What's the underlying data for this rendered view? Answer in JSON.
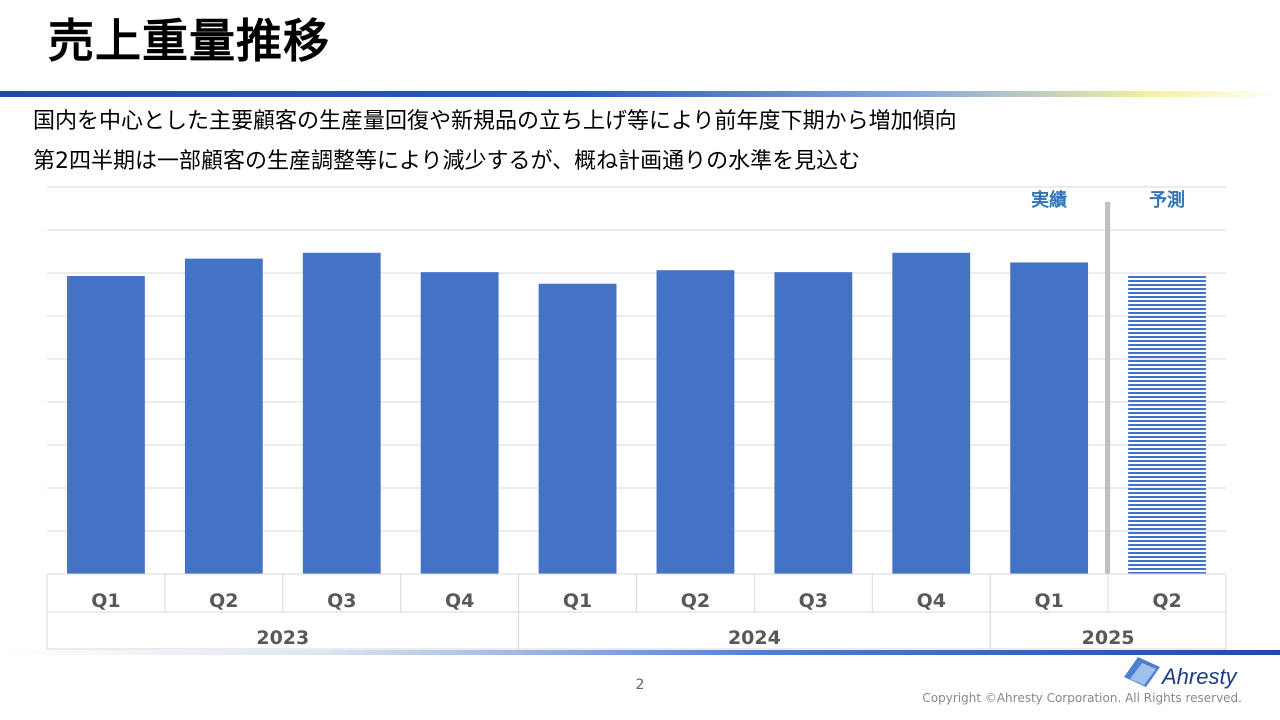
{
  "page": {
    "title": "売上重量推移",
    "bullets": [
      "国内を中心とした主要顧客の生産量回復や新規品の立ち上げ等により前年度下期から増加傾向",
      "第2四半期は一部顧客の生産調整等により減少するが、概ね計画通りの水準を見込む"
    ],
    "page_number": "2",
    "copyright": "Copyright ©Ahresty Corporation. All Rights reserved.",
    "logo_text": "Ahresty"
  },
  "chart_data": {
    "type": "bar",
    "title": "",
    "xlabel": "",
    "ylabel": "",
    "ylim": [
      0,
      100
    ],
    "grid": true,
    "categories": [
      "Q1",
      "Q2",
      "Q3",
      "Q4",
      "Q1",
      "Q2",
      "Q3",
      "Q4",
      "Q1",
      "Q2"
    ],
    "groups": [
      {
        "label": "2023",
        "span": 4
      },
      {
        "label": "2024",
        "span": 4
      },
      {
        "label": "2025",
        "span": 2
      }
    ],
    "values": [
      77,
      81.5,
      83,
      78,
      75,
      78.5,
      78,
      83,
      80.5,
      77.5
    ],
    "bar_styles": [
      "solid",
      "solid",
      "solid",
      "solid",
      "solid",
      "solid",
      "solid",
      "solid",
      "solid",
      "striped"
    ],
    "annotations": {
      "actual": "実績",
      "forecast": "予測"
    },
    "colors": {
      "bar": "#4472c4",
      "grid": "#d9d9d9",
      "divider": "#bfbfbf",
      "annotation": "#2e75b6"
    }
  }
}
